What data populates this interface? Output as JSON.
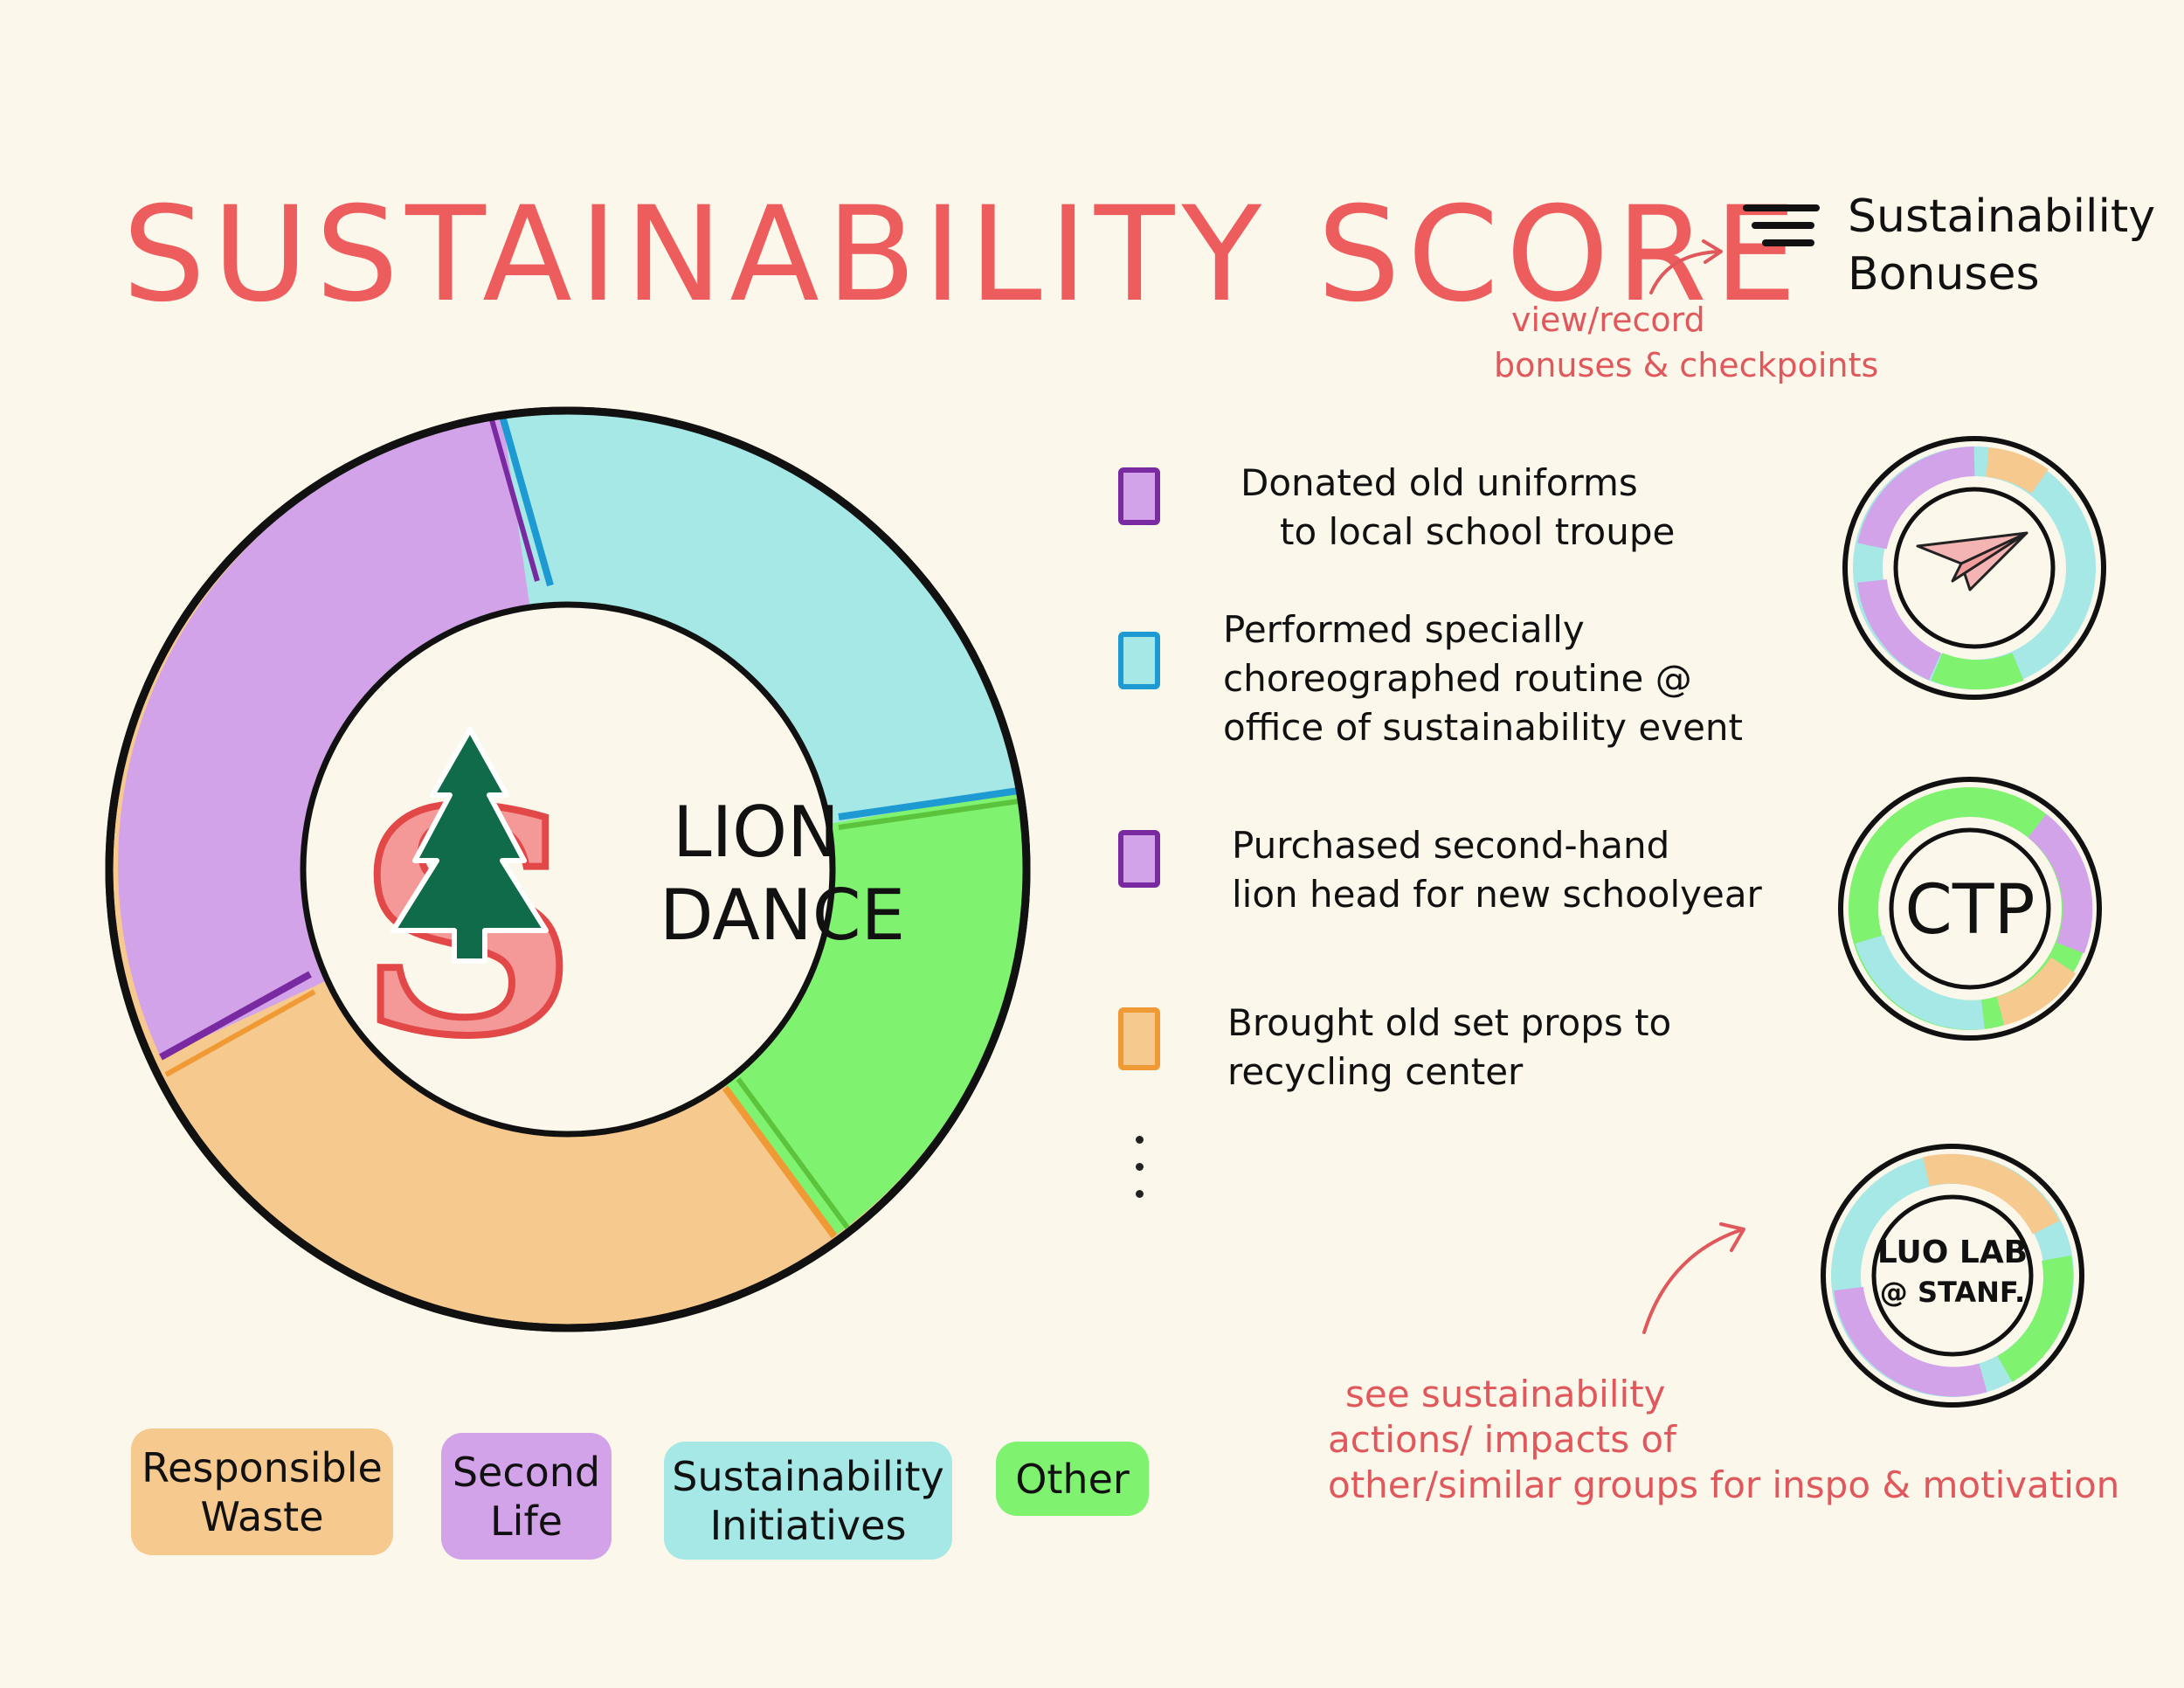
{
  "title": "SUSTAINABILITY SCORE",
  "bonuses": {
    "label_line1": "Sustainability",
    "label_line2": "Bonuses"
  },
  "annotations": {
    "bonus_note_line1": "view/record",
    "bonus_note_line2": "bonuses & checkpoints",
    "groups_note_line1": "see sustainability",
    "groups_note_line2": "actions/ impacts of",
    "groups_note_line3": "other/similar groups for inspo & motivation"
  },
  "donut": {
    "center_line1": "LION",
    "center_line2": "DANCE",
    "logo_letter": "S",
    "segments": [
      {
        "category": "Sustainability Initiatives",
        "color": "#a5e8e6"
      },
      {
        "category": "Other",
        "color": "#7ff270"
      },
      {
        "category": "Responsible Waste",
        "color": "#f6c98f"
      },
      {
        "category": "Second Life",
        "color": "#d3a3ea"
      }
    ]
  },
  "bonus_items": [
    {
      "line1": "Donated old uniforms",
      "line2": "to local school troupe",
      "color": "#d3a3ea",
      "border": "#7a2aa0"
    },
    {
      "line1": "Performed specially",
      "line2": "choreographed routine @",
      "line3": "office of sustainability event",
      "color": "#a5e8e6",
      "border": "#1e9ad3"
    },
    {
      "line1": "Purchased second-hand",
      "line2": "lion head for new schoolyear",
      "color": "#d3a3ea",
      "border": "#7a2aa0"
    },
    {
      "line1": "Brought old set props to",
      "line2": "recycling center",
      "color": "#f6c98f",
      "border": "#f09a35"
    }
  ],
  "groups": [
    {
      "name": "paper-plane-group",
      "label": ""
    },
    {
      "name": "ctp-group",
      "label": "CTP"
    },
    {
      "name": "luo-lab-group",
      "label_line1": "LUO LAB",
      "label_line2": "@ STANF."
    }
  ],
  "legend": [
    {
      "line1": "Responsible",
      "line2": "Waste",
      "color": "#f6c98f"
    },
    {
      "line1": "Second",
      "line2": "Life",
      "color": "#d3a3ea"
    },
    {
      "line1": "Sustainability",
      "line2": "Initiatives",
      "color": "#a5e8e6"
    },
    {
      "line1": "Other",
      "line2": "",
      "color": "#7ff270"
    }
  ]
}
